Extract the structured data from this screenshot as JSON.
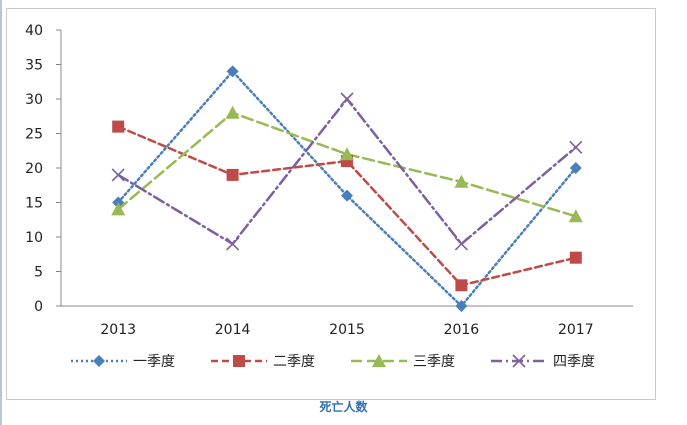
{
  "caption": "死亡人数",
  "chart_data": {
    "type": "line",
    "title": "",
    "xlabel": "",
    "ylabel": "",
    "categories": [
      "2013",
      "2014",
      "2015",
      "2016",
      "2017"
    ],
    "ylim": [
      0,
      40
    ],
    "yticks": [
      0,
      5,
      10,
      15,
      20,
      25,
      30,
      35,
      40
    ],
    "grid": false,
    "legend_position": "bottom",
    "series": [
      {
        "name": "一季度",
        "values": [
          15,
          34,
          16,
          0,
          20
        ],
        "color": "#4a7ebb",
        "marker": "diamond",
        "dash": "dotted"
      },
      {
        "name": "二季度",
        "values": [
          26,
          19,
          21,
          3,
          7
        ],
        "color": "#be4b48",
        "marker": "square",
        "dash": "dashed"
      },
      {
        "name": "三季度",
        "values": [
          14,
          28,
          22,
          18,
          13
        ],
        "color": "#98b954",
        "marker": "triangle",
        "dash": "long-dash"
      },
      {
        "name": "四季度",
        "values": [
          19,
          9,
          30,
          9,
          23
        ],
        "color": "#7d60a0",
        "marker": "x",
        "dash": "dash-dot"
      }
    ]
  }
}
